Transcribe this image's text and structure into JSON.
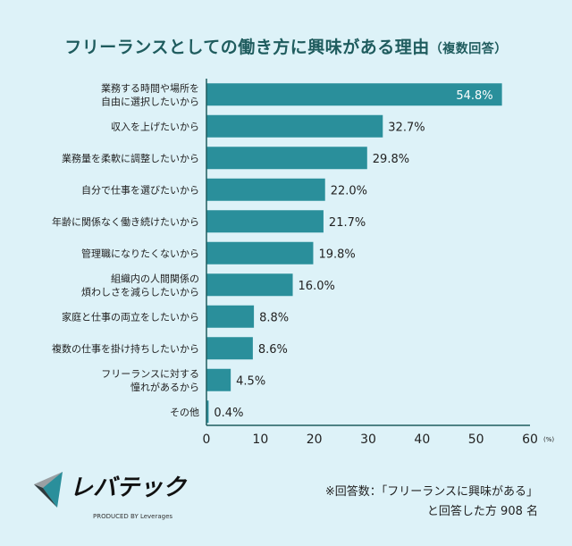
{
  "chart_data": {
    "type": "bar",
    "orientation": "horizontal",
    "title": "フリーランスとしての働き方に興味がある理由",
    "subtitle": "（複数回答）",
    "categories": [
      [
        "業務する時間や場所を",
        "自由に選択したいから"
      ],
      [
        "収入を上げたいから"
      ],
      [
        "業務量を柔軟に調整したいから"
      ],
      [
        "自分で仕事を選びたいから"
      ],
      [
        "年齢に関係なく働き続けたいから"
      ],
      [
        "管理職になりたくないから"
      ],
      [
        "組織内の人間関係の",
        "煩わしさを減らしたいから"
      ],
      [
        "家庭と仕事の両立をしたいから"
      ],
      [
        "複数の仕事を掛け持ちしたいから"
      ],
      [
        "フリーランスに対する",
        "憧れがあるから"
      ],
      [
        "その他"
      ]
    ],
    "values": [
      54.8,
      32.7,
      29.8,
      22.0,
      21.7,
      19.8,
      16.0,
      8.8,
      8.6,
      4.5,
      0.4
    ],
    "data_labels": [
      "54.8%",
      "32.7%",
      "29.8%",
      "22.0%",
      "21.7%",
      "19.8%",
      "16.0%",
      "8.8%",
      "8.6%",
      "4.5%",
      "0.4%"
    ],
    "xlim": [
      0,
      60
    ],
    "xticks": [
      "0",
      "10",
      "20",
      "30",
      "40",
      "50",
      "60"
    ],
    "xunit": "(%)",
    "grid": false,
    "bar_color": "#2a8f9b"
  },
  "note": {
    "line1": "※回答数：「フリーランスに興味がある」",
    "line2": "と回答した方 908 名"
  },
  "logo": {
    "name": "レバテック",
    "tagline": "PRODUCED BY Leverages"
  }
}
